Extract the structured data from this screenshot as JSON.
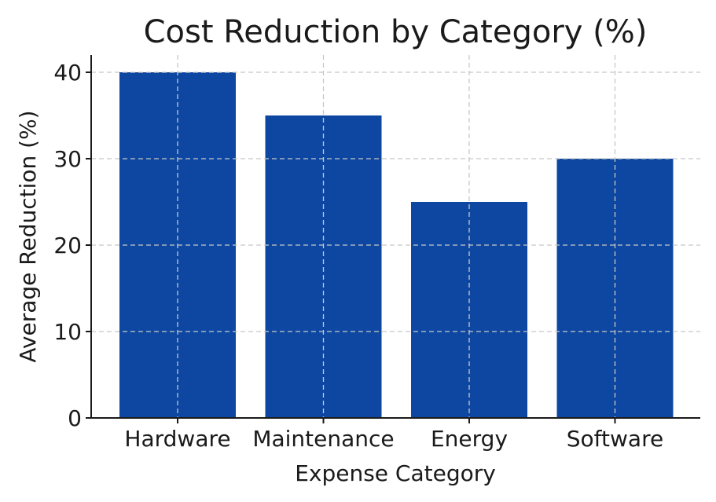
{
  "chart_data": {
    "type": "bar",
    "title": "Cost Reduction by Category (%)",
    "xlabel": "Expense Category",
    "ylabel": "Average Reduction (%)",
    "categories": [
      "Hardware",
      "Maintenance",
      "Energy",
      "Software"
    ],
    "values": [
      40,
      35,
      25,
      30
    ],
    "ylim": [
      0,
      42
    ],
    "yticks": [
      0,
      10,
      20,
      30,
      40
    ],
    "grid": true,
    "bar_color": "#0d47a1"
  }
}
